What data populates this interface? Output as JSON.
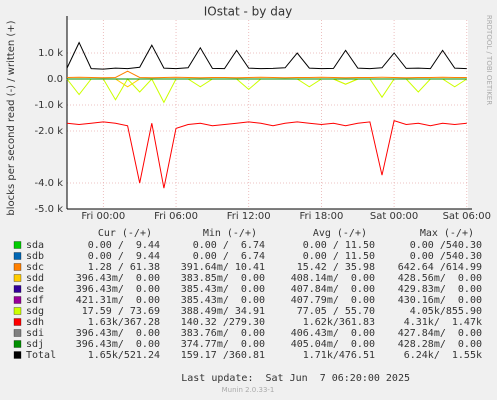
{
  "chart_data": {
    "type": "line",
    "title": "IOstat - by day",
    "y_label": "blocks per second read (-) / written (+)",
    "side_label": "RRDTOOL / TOBI OETIKER",
    "x": [
      -3,
      -2,
      -1,
      0,
      1,
      2,
      3,
      4,
      5,
      6,
      7,
      8,
      9,
      10,
      11,
      12,
      13,
      14,
      15,
      16,
      17,
      18,
      19,
      20,
      21,
      22,
      23,
      24,
      25,
      26,
      27,
      28,
      29,
      30
    ],
    "xlim": [
      -3,
      30.1
    ],
    "xticks": [
      {
        "value": 0,
        "label": "Fri 00:00"
      },
      {
        "value": 6,
        "label": "Fri 06:00"
      },
      {
        "value": 12,
        "label": "Fri 12:00"
      },
      {
        "value": 18,
        "label": "Fri 18:00"
      },
      {
        "value": 24,
        "label": "Sat 00:00"
      },
      {
        "value": 30,
        "label": "Sat 06:00"
      }
    ],
    "ylim": [
      -5000,
      2270
    ],
    "yticks": [
      {
        "value": -5000,
        "label": "-5.0 k"
      },
      {
        "value": -4000,
        "label": "-4.0 k"
      },
      {
        "value": -2000,
        "label": "-2.0 k"
      },
      {
        "value": -1000,
        "label": "-1.0 k"
      },
      {
        "value": 0,
        "label": "0.0"
      },
      {
        "value": 1000,
        "label": "1.0 k"
      }
    ],
    "grid": true,
    "legend_headers": [
      "Cur (-/+)",
      "Min (-/+)",
      "Avg (-/+)",
      "Max (-/+)"
    ],
    "series": [
      {
        "name": "sda",
        "color": "#00cc00",
        "stats": [
          "0.00 /  9.44",
          "0.00 /  6.74",
          "0.00 / 11.50",
          "0.00 /540.30"
        ],
        "values": [
          0,
          0,
          0,
          0,
          0,
          0,
          0,
          0,
          0,
          0,
          0,
          0,
          0,
          0,
          0,
          0,
          0,
          0,
          0,
          0,
          0,
          0,
          0,
          0,
          0,
          0,
          0,
          0,
          0,
          0,
          0,
          0,
          0,
          0
        ]
      },
      {
        "name": "sdb",
        "color": "#0066b3",
        "stats": [
          "0.00 /  9.44",
          "0.00 /  6.74",
          "0.00 / 11.50",
          "0.00 /540.30"
        ],
        "values": [
          0,
          0,
          0,
          0,
          0,
          0,
          0,
          0,
          0,
          0,
          0,
          0,
          0,
          0,
          0,
          0,
          0,
          0,
          0,
          0,
          0,
          0,
          0,
          0,
          0,
          0,
          0,
          0,
          0,
          0,
          0,
          0,
          0,
          0
        ]
      },
      {
        "name": "sdc",
        "color": "#ff8000",
        "stats": [
          "1.28 / 61.38",
          "391.64m/ 10.41",
          "15.42 / 35.98",
          "642.64 /614.99"
        ],
        "values": [
          60,
          70,
          60,
          50,
          60,
          300,
          60,
          50,
          60,
          70,
          60,
          50,
          60,
          60,
          50,
          60,
          70,
          60,
          50,
          60,
          60,
          70,
          60,
          50,
          60,
          60,
          70,
          60,
          50,
          60,
          60,
          70,
          60,
          60
        ]
      },
      {
        "name": "sdd",
        "color": "#ffcc00",
        "stats": [
          "396.43m/  0.00",
          "383.85m/  0.00",
          "408.14m/  0.00",
          "428.56m/  0.00"
        ],
        "values": [
          0,
          0,
          0,
          0,
          0,
          -300,
          0,
          0,
          0,
          0,
          0,
          0,
          0,
          0,
          0,
          0,
          0,
          0,
          0,
          0,
          0,
          0,
          0,
          -200,
          0,
          0,
          0,
          0,
          0,
          0,
          0,
          0,
          0,
          0
        ]
      },
      {
        "name": "sde",
        "color": "#330099",
        "stats": [
          "396.43m/  0.00",
          "385.43m/  0.00",
          "407.84m/  0.00",
          "429.83m/  0.00"
        ],
        "values": [
          0,
          0,
          0,
          0,
          0,
          0,
          0,
          0,
          0,
          0,
          0,
          0,
          0,
          0,
          0,
          0,
          0,
          0,
          0,
          0,
          0,
          0,
          0,
          0,
          0,
          0,
          0,
          0,
          0,
          0,
          0,
          0,
          0,
          0
        ]
      },
      {
        "name": "sdf",
        "color": "#990099",
        "stats": [
          "421.31m/  0.00",
          "385.43m/  0.00",
          "407.79m/  0.00",
          "430.16m/  0.00"
        ],
        "values": [
          0,
          0,
          0,
          0,
          0,
          0,
          0,
          0,
          0,
          0,
          0,
          0,
          0,
          0,
          0,
          0,
          0,
          0,
          0,
          0,
          0,
          0,
          0,
          0,
          0,
          0,
          0,
          0,
          0,
          0,
          0,
          0,
          0,
          0
        ]
      },
      {
        "name": "sdg",
        "color": "#ccff00",
        "stats": [
          "17.59 / 73.69",
          "388.49m/ 34.91",
          "77.05 / 55.70",
          "4.05k/855.90"
        ],
        "values": [
          0,
          -600,
          0,
          0,
          -800,
          0,
          -500,
          0,
          -900,
          0,
          0,
          -300,
          0,
          0,
          0,
          -400,
          0,
          0,
          0,
          0,
          -300,
          0,
          0,
          -200,
          0,
          0,
          -700,
          0,
          0,
          -500,
          0,
          0,
          -300,
          0
        ]
      },
      {
        "name": "sdh",
        "color": "#ff0000",
        "stats": [
          "1.63k/367.28",
          "140.32 /279.30",
          "1.62k/361.83",
          "4.31k/  1.47k"
        ],
        "values": [
          -1700,
          -1750,
          -1700,
          -1650,
          -1700,
          -1800,
          -4000,
          -1700,
          -4200,
          -1900,
          -1750,
          -1700,
          -1800,
          -1750,
          -1700,
          -1650,
          -1700,
          -1800,
          -1700,
          -1650,
          -1700,
          -1750,
          -1700,
          -1800,
          -1700,
          -1650,
          -3700,
          -1600,
          -1750,
          -1700,
          -1800,
          -1700,
          -1750,
          -1700
        ]
      },
      {
        "name": "sdi",
        "color": "#808080",
        "stats": [
          "396.43m/  0.00",
          "383.76m/  0.00",
          "406.43m/  0.00",
          "427.84m/  0.00"
        ],
        "values": [
          0,
          0,
          0,
          0,
          0,
          0,
          0,
          0,
          0,
          0,
          0,
          0,
          0,
          0,
          0,
          0,
          0,
          0,
          0,
          0,
          0,
          0,
          0,
          0,
          0,
          0,
          0,
          0,
          0,
          0,
          0,
          0,
          0,
          0
        ]
      },
      {
        "name": "sdj",
        "color": "#008f00",
        "stats": [
          "396.43m/  0.00",
          "374.77m/  0.00",
          "405.04m/  0.00",
          "428.28m/  0.00"
        ],
        "values": [
          0,
          0,
          0,
          0,
          0,
          0,
          0,
          0,
          0,
          0,
          0,
          0,
          0,
          0,
          0,
          0,
          0,
          0,
          0,
          0,
          0,
          0,
          0,
          0,
          0,
          0,
          0,
          0,
          0,
          0,
          0,
          0,
          0,
          0
        ]
      },
      {
        "name": "Total",
        "color": "#000000",
        "stats": [
          "1.65k/521.24",
          "159.17 /360.81",
          "1.71k/476.51",
          "6.24k/  1.55k"
        ],
        "values": [
          420,
          1400,
          400,
          380,
          420,
          400,
          450,
          1300,
          420,
          400,
          430,
          1200,
          410,
          400,
          1100,
          420,
          400,
          410,
          430,
          1000,
          420,
          400,
          410,
          1100,
          420,
          400,
          430,
          1000,
          410,
          420,
          400,
          1100,
          420,
          400
        ]
      }
    ],
    "last_update": "Last update:  Sat Jun  7 06:20:00 2025",
    "footer": "Munin 2.0.33-1"
  }
}
